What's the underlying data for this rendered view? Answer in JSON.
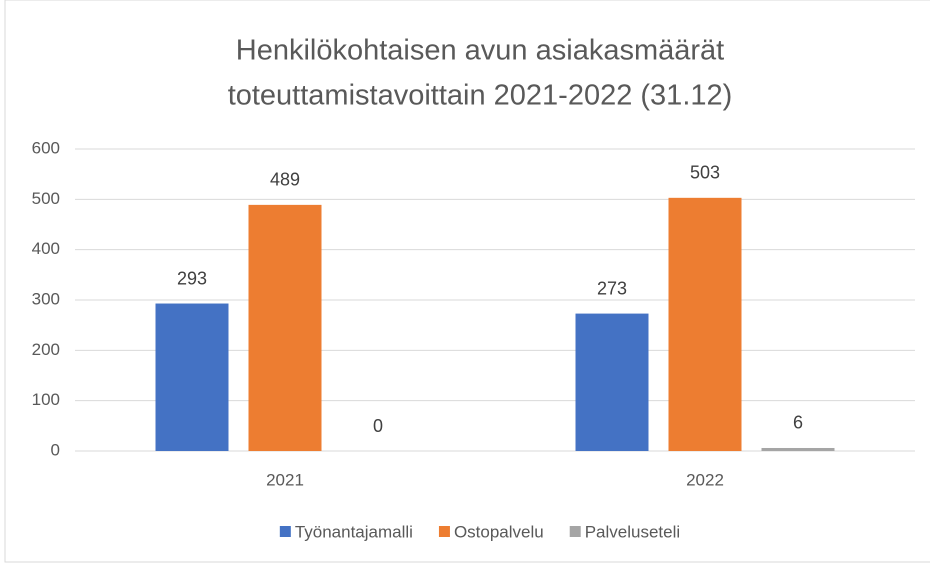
{
  "chart_data": {
    "type": "bar",
    "title": [
      "Henkilökohtaisen avun asiakasmäärät",
      "toteuttamistavoittain 2021-2022 (31.12)"
    ],
    "categories": [
      "2021",
      "2022"
    ],
    "series": [
      {
        "name": "Työnantajamalli",
        "color": "#4472c4",
        "values": [
          293,
          273
        ]
      },
      {
        "name": "Ostopalvelu",
        "color": "#ed7d31",
        "values": [
          489,
          503
        ]
      },
      {
        "name": "Palveluseteli",
        "color": "#a5a5a5",
        "values": [
          0,
          6
        ]
      }
    ],
    "ylim": [
      0,
      600
    ],
    "yticks": [
      0,
      100,
      200,
      300,
      400,
      500,
      600
    ],
    "grid": true,
    "legend": "bottom"
  }
}
